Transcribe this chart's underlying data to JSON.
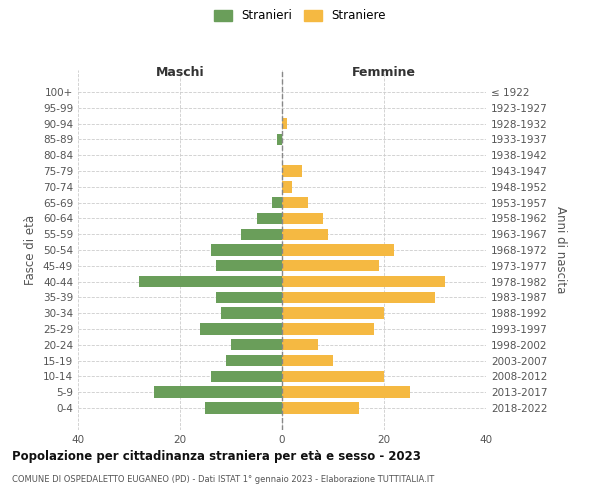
{
  "age_groups": [
    "100+",
    "95-99",
    "90-94",
    "85-89",
    "80-84",
    "75-79",
    "70-74",
    "65-69",
    "60-64",
    "55-59",
    "50-54",
    "45-49",
    "40-44",
    "35-39",
    "30-34",
    "25-29",
    "20-24",
    "15-19",
    "10-14",
    "5-9",
    "0-4"
  ],
  "birth_years": [
    "≤ 1922",
    "1923-1927",
    "1928-1932",
    "1933-1937",
    "1938-1942",
    "1943-1947",
    "1948-1952",
    "1953-1957",
    "1958-1962",
    "1963-1967",
    "1968-1972",
    "1973-1977",
    "1978-1982",
    "1983-1987",
    "1988-1992",
    "1993-1997",
    "1998-2002",
    "2003-2007",
    "2008-2012",
    "2013-2017",
    "2018-2022"
  ],
  "males": [
    0,
    0,
    0,
    1,
    0,
    0,
    0,
    2,
    5,
    8,
    14,
    13,
    28,
    13,
    12,
    16,
    10,
    11,
    14,
    25,
    15
  ],
  "females": [
    0,
    0,
    1,
    0,
    0,
    4,
    2,
    5,
    8,
    9,
    22,
    19,
    32,
    30,
    20,
    18,
    7,
    10,
    20,
    25,
    15
  ],
  "male_color": "#6a9e5a",
  "female_color": "#f5b942",
  "center_line_color": "#888888",
  "grid_color": "#cccccc",
  "title": "Popolazione per cittadinanza straniera per età e sesso - 2023",
  "subtitle": "COMUNE DI OSPEDALETTO EUGANEO (PD) - Dati ISTAT 1° gennaio 2023 - Elaborazione TUTTITALIA.IT",
  "xlabel_left": "Maschi",
  "xlabel_right": "Femmine",
  "ylabel_left": "Fasce di età",
  "ylabel_right": "Anni di nascita",
  "legend_male": "Stranieri",
  "legend_female": "Straniere",
  "xlim": 40,
  "bg_color": "#ffffff"
}
